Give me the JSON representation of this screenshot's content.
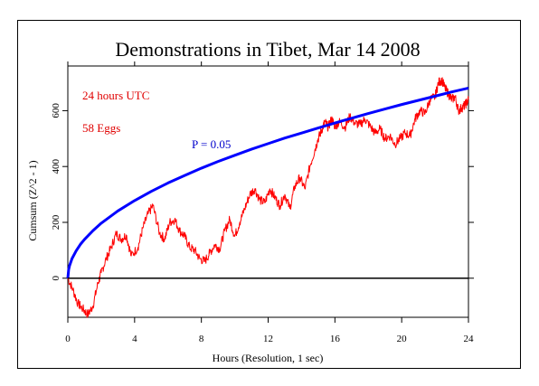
{
  "chart_data": {
    "type": "line",
    "title": "Demonstrations in Tibet, Mar 14 2008",
    "xlabel": "Hours (Resolution, 1 sec)",
    "ylabel": "Cumsum (Z^2 - 1)",
    "xlim": [
      0,
      24
    ],
    "ylim": [
      -140,
      760
    ],
    "xticks": [
      0,
      4,
      8,
      12,
      16,
      20,
      24
    ],
    "yticks": [
      0,
      200,
      400,
      600
    ],
    "grid": false,
    "annotations": [
      "24 hours UTC",
      "58 Eggs"
    ],
    "series": [
      {
        "name": "Cumsum",
        "color": "#ff0000",
        "x": [
          0,
          0.3,
          0.6,
          0.9,
          1.2,
          1.5,
          1.8,
          2.0,
          2.3,
          2.6,
          2.9,
          3.2,
          3.5,
          3.8,
          4.2,
          4.5,
          4.8,
          5.1,
          5.5,
          5.8,
          6.1,
          6.4,
          6.7,
          7.0,
          7.3,
          7.6,
          7.9,
          8.2,
          8.5,
          8.8,
          9.1,
          9.4,
          9.7,
          10.0,
          10.3,
          10.6,
          10.9,
          11.2,
          11.5,
          11.8,
          12.1,
          12.4,
          12.7,
          13.0,
          13.3,
          13.6,
          13.9,
          14.2,
          14.5,
          14.8,
          15.0,
          15.2,
          15.4,
          15.6,
          15.8,
          16.0,
          16.3,
          16.6,
          16.9,
          17.2,
          17.5,
          17.8,
          18.1,
          18.4,
          18.7,
          19.0,
          19.3,
          19.6,
          19.9,
          20.2,
          20.5,
          20.8,
          21.1,
          21.4,
          21.7,
          22.0,
          22.2,
          22.4,
          22.6,
          22.8,
          23.0,
          23.2,
          23.4,
          23.6,
          23.8,
          24.0
        ],
        "y": [
          0,
          -40,
          -90,
          -110,
          -130,
          -100,
          -20,
          20,
          70,
          110,
          160,
          140,
          155,
          80,
          110,
          180,
          230,
          260,
          160,
          140,
          200,
          210,
          170,
          150,
          110,
          100,
          70,
          60,
          90,
          120,
          105,
          170,
          210,
          150,
          200,
          250,
          300,
          320,
          280,
          270,
          320,
          290,
          260,
          300,
          250,
          330,
          360,
          320,
          400,
          460,
          500,
          530,
          560,
          540,
          570,
          545,
          560,
          540,
          580,
          555,
          550,
          570,
          545,
          520,
          535,
          500,
          510,
          480,
          500,
          520,
          510,
          570,
          600,
          590,
          640,
          650,
          700,
          710,
          680,
          660,
          640,
          650,
          600,
          610,
          620,
          640
        ]
      },
      {
        "name": "P = 0.05",
        "color": "#0000ff",
        "x": [
          0,
          0.05,
          0.1,
          0.25,
          0.5,
          0.75,
          1,
          1.5,
          2,
          3,
          4,
          5,
          6,
          7,
          8,
          9,
          10,
          11,
          12,
          13,
          14,
          15,
          16,
          17,
          18,
          19,
          20,
          21,
          22,
          23,
          24
        ],
        "y": [
          0,
          31,
          44,
          70,
          98,
          121,
          139,
          170,
          197,
          241,
          278,
          311,
          341,
          368,
          394,
          418,
          440,
          462,
          482,
          502,
          520,
          538,
          556,
          573,
          590,
          606,
          622,
          637,
          652,
          667,
          681
        ]
      },
      {
        "name": "zero",
        "color": "#000000",
        "x": [
          0,
          24
        ],
        "y": [
          0,
          0
        ]
      }
    ],
    "labels": {
      "p_label": "P = 0.05"
    }
  }
}
